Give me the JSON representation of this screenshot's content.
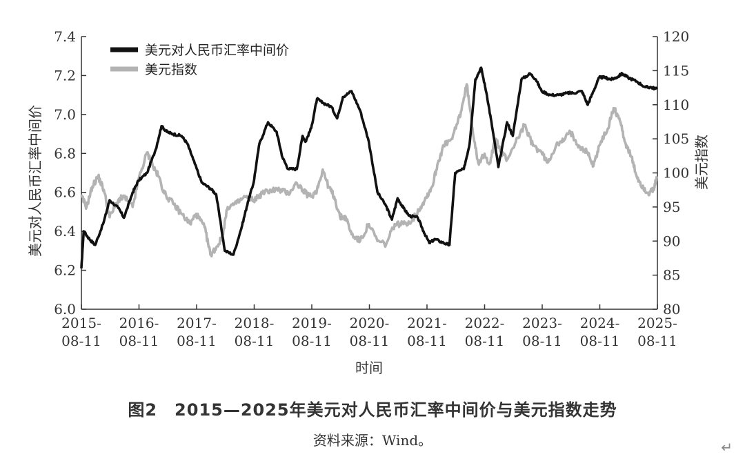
{
  "chart_data": {
    "type": "line",
    "title": "",
    "xlabel": "时间",
    "ylabel_left": "美元对人民币汇率中间价",
    "ylabel_right": "美元指数",
    "x_ticks": [
      "2015-08-11",
      "2016-08-11",
      "2017-08-11",
      "2018-08-11",
      "2019-08-11",
      "2020-08-11",
      "2021-08-11",
      "2022-08-11",
      "2023-08-11",
      "2024-08-11",
      "2025-08-11"
    ],
    "ylim_left": [
      6.0,
      7.4
    ],
    "yticks_left": [
      "6.0",
      "6.2",
      "6.4",
      "6.6",
      "6.8",
      "7.0",
      "7.2",
      "7.4"
    ],
    "ylim_right": [
      80,
      120
    ],
    "yticks_right": [
      "80",
      "85",
      "90",
      "95",
      "100",
      "105",
      "110",
      "115",
      "120"
    ],
    "grid": false,
    "legend_position": "top-left",
    "series": [
      {
        "name": "美元对人民币汇率中间价",
        "axis": "left",
        "color": "#111111",
        "x": [
          2015.61,
          2015.65,
          2015.75,
          2015.85,
          2016.0,
          2016.1,
          2016.25,
          2016.35,
          2016.5,
          2016.6,
          2016.75,
          2016.9,
          2017.0,
          2017.1,
          2017.2,
          2017.35,
          2017.45,
          2017.55,
          2017.7,
          2017.85,
          2017.95,
          2018.1,
          2018.25,
          2018.4,
          2018.5,
          2018.6,
          2018.7,
          2018.85,
          2019.0,
          2019.1,
          2019.2,
          2019.35,
          2019.45,
          2019.5,
          2019.6,
          2019.7,
          2019.8,
          2019.95,
          2020.05,
          2020.15,
          2020.3,
          2020.45,
          2020.6,
          2020.75,
          2020.9,
          2021.0,
          2021.1,
          2021.2,
          2021.3,
          2021.45,
          2021.55,
          2021.65,
          2021.75,
          2021.9,
          2022.0,
          2022.1,
          2022.25,
          2022.35,
          2022.45,
          2022.55,
          2022.65,
          2022.75,
          2022.85,
          2023.0,
          2023.1,
          2023.25,
          2023.4,
          2023.5,
          2023.6,
          2023.75,
          2023.9,
          2024.05,
          2024.15,
          2024.3,
          2024.4,
          2024.5,
          2024.6,
          2024.7,
          2024.8,
          2024.9,
          2025.0,
          2025.1,
          2025.25,
          2025.4,
          2025.5,
          2025.6
        ],
        "values": [
          6.21,
          6.4,
          6.36,
          6.33,
          6.45,
          6.56,
          6.52,
          6.47,
          6.6,
          6.66,
          6.7,
          6.82,
          6.94,
          6.91,
          6.9,
          6.89,
          6.85,
          6.77,
          6.65,
          6.62,
          6.59,
          6.3,
          6.28,
          6.43,
          6.55,
          6.65,
          6.85,
          6.96,
          6.91,
          6.78,
          6.72,
          6.72,
          6.89,
          6.86,
          6.93,
          7.08,
          7.06,
          7.04,
          6.98,
          7.09,
          7.12,
          7.02,
          6.86,
          6.6,
          6.53,
          6.46,
          6.57,
          6.52,
          6.48,
          6.47,
          6.4,
          6.34,
          6.36,
          6.34,
          6.33,
          6.7,
          6.72,
          6.85,
          7.18,
          7.24,
          7.1,
          6.92,
          6.73,
          6.96,
          6.89,
          7.18,
          7.21,
          7.18,
          7.12,
          7.1,
          7.1,
          7.11,
          7.11,
          7.12,
          7.05,
          7.12,
          7.19,
          7.19,
          7.18,
          7.19,
          7.21,
          7.19,
          7.17,
          7.14,
          7.14,
          7.13
        ]
      },
      {
        "name": "美元指数",
        "axis": "right",
        "color": "#b3b3b3",
        "x": [
          2015.61,
          2015.7,
          2015.8,
          2015.9,
          2016.0,
          2016.1,
          2016.25,
          2016.35,
          2016.5,
          2016.6,
          2016.75,
          2016.85,
          2016.95,
          2017.05,
          2017.2,
          2017.35,
          2017.5,
          2017.6,
          2017.75,
          2017.85,
          2017.95,
          2018.05,
          2018.15,
          2018.3,
          2018.45,
          2018.6,
          2018.75,
          2018.9,
          2019.05,
          2019.2,
          2019.35,
          2019.5,
          2019.6,
          2019.7,
          2019.8,
          2019.9,
          2020.0,
          2020.1,
          2020.2,
          2020.3,
          2020.45,
          2020.6,
          2020.75,
          2020.9,
          2021.05,
          2021.2,
          2021.35,
          2021.5,
          2021.6,
          2021.7,
          2021.8,
          2021.9,
          2022.05,
          2022.2,
          2022.3,
          2022.4,
          2022.5,
          2022.6,
          2022.7,
          2022.8,
          2022.9,
          2023.0,
          2023.15,
          2023.3,
          2023.45,
          2023.6,
          2023.7,
          2023.85,
          2023.95,
          2024.1,
          2024.25,
          2024.4,
          2024.5,
          2024.6,
          2024.75,
          2024.85,
          2024.95,
          2025.05,
          2025.15,
          2025.25,
          2025.35,
          2025.45,
          2025.55,
          2025.6
        ],
        "values": [
          96.5,
          95.0,
          98.0,
          99.5,
          97.5,
          93.5,
          96.0,
          96.5,
          95.0,
          99.0,
          103.0,
          101.0,
          99.5,
          97.0,
          95.5,
          94.0,
          92.5,
          94.0,
          92.0,
          88.0,
          89.0,
          90.5,
          95.0,
          95.5,
          96.5,
          96.0,
          97.0,
          97.5,
          97.5,
          97.0,
          98.5,
          97.0,
          96.5,
          97.5,
          100.5,
          98.0,
          96.5,
          93.5,
          93.5,
          91.0,
          90.0,
          92.5,
          90.0,
          89.5,
          92.5,
          92.5,
          93.0,
          95.0,
          96.5,
          98.0,
          101.5,
          104.0,
          105.0,
          109.0,
          113.0,
          106.5,
          101.5,
          102.5,
          101.5,
          105.0,
          103.0,
          102.0,
          104.5,
          107.0,
          104.0,
          103.0,
          101.5,
          104.0,
          104.5,
          106.0,
          104.0,
          103.0,
          101.0,
          104.0,
          106.5,
          109.5,
          108.0,
          104.5,
          102.5,
          99.5,
          98.0,
          97.0,
          97.5,
          99.5
        ]
      }
    ]
  },
  "figure": {
    "title": "图2　2015—2025年美元对人民币汇率中间价与美元指数走势",
    "source": "资料来源：Wind。"
  },
  "page": {
    "return_mark": "↵"
  }
}
